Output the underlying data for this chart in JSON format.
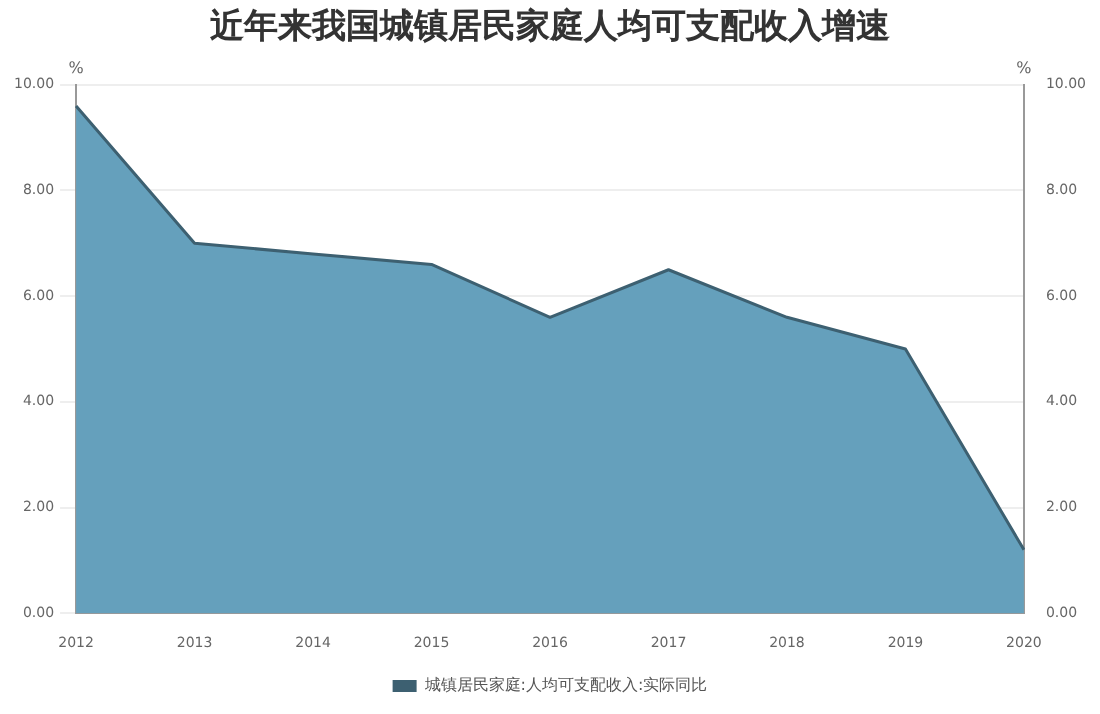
{
  "chart_data": {
    "type": "area",
    "title": "近年来我国城镇居民家庭人均可支配收入增速",
    "ylabel": "%",
    "y2label": "%",
    "categories": [
      "2012",
      "2013",
      "2014",
      "2015",
      "2016",
      "2017",
      "2018",
      "2019",
      "2020"
    ],
    "series": [
      {
        "name": "城镇居民家庭:人均可支配收入:实际同比",
        "color": "#65a0bc",
        "values": [
          9.6,
          7.0,
          6.8,
          6.6,
          5.6,
          6.5,
          5.6,
          5.0,
          1.2
        ]
      }
    ],
    "ylim": [
      0,
      10
    ],
    "yticks": [
      {
        "value": 0,
        "label": "0.00"
      },
      {
        "value": 2,
        "label": "2.00"
      },
      {
        "value": 4,
        "label": "4.00"
      },
      {
        "value": 6,
        "label": "6.00"
      },
      {
        "value": 8,
        "label": "8.00"
      },
      {
        "value": 10,
        "label": "10.00"
      }
    ],
    "y2lim": [
      0,
      10
    ],
    "y2ticks": [
      {
        "value": 0,
        "label": "0.00"
      },
      {
        "value": 2,
        "label": "2.00"
      },
      {
        "value": 4,
        "label": "4.00"
      },
      {
        "value": 6,
        "label": "6.00"
      },
      {
        "value": 8,
        "label": "8.00"
      },
      {
        "value": 10,
        "label": "10.00"
      }
    ],
    "grid": "y",
    "legend": "bottom"
  }
}
